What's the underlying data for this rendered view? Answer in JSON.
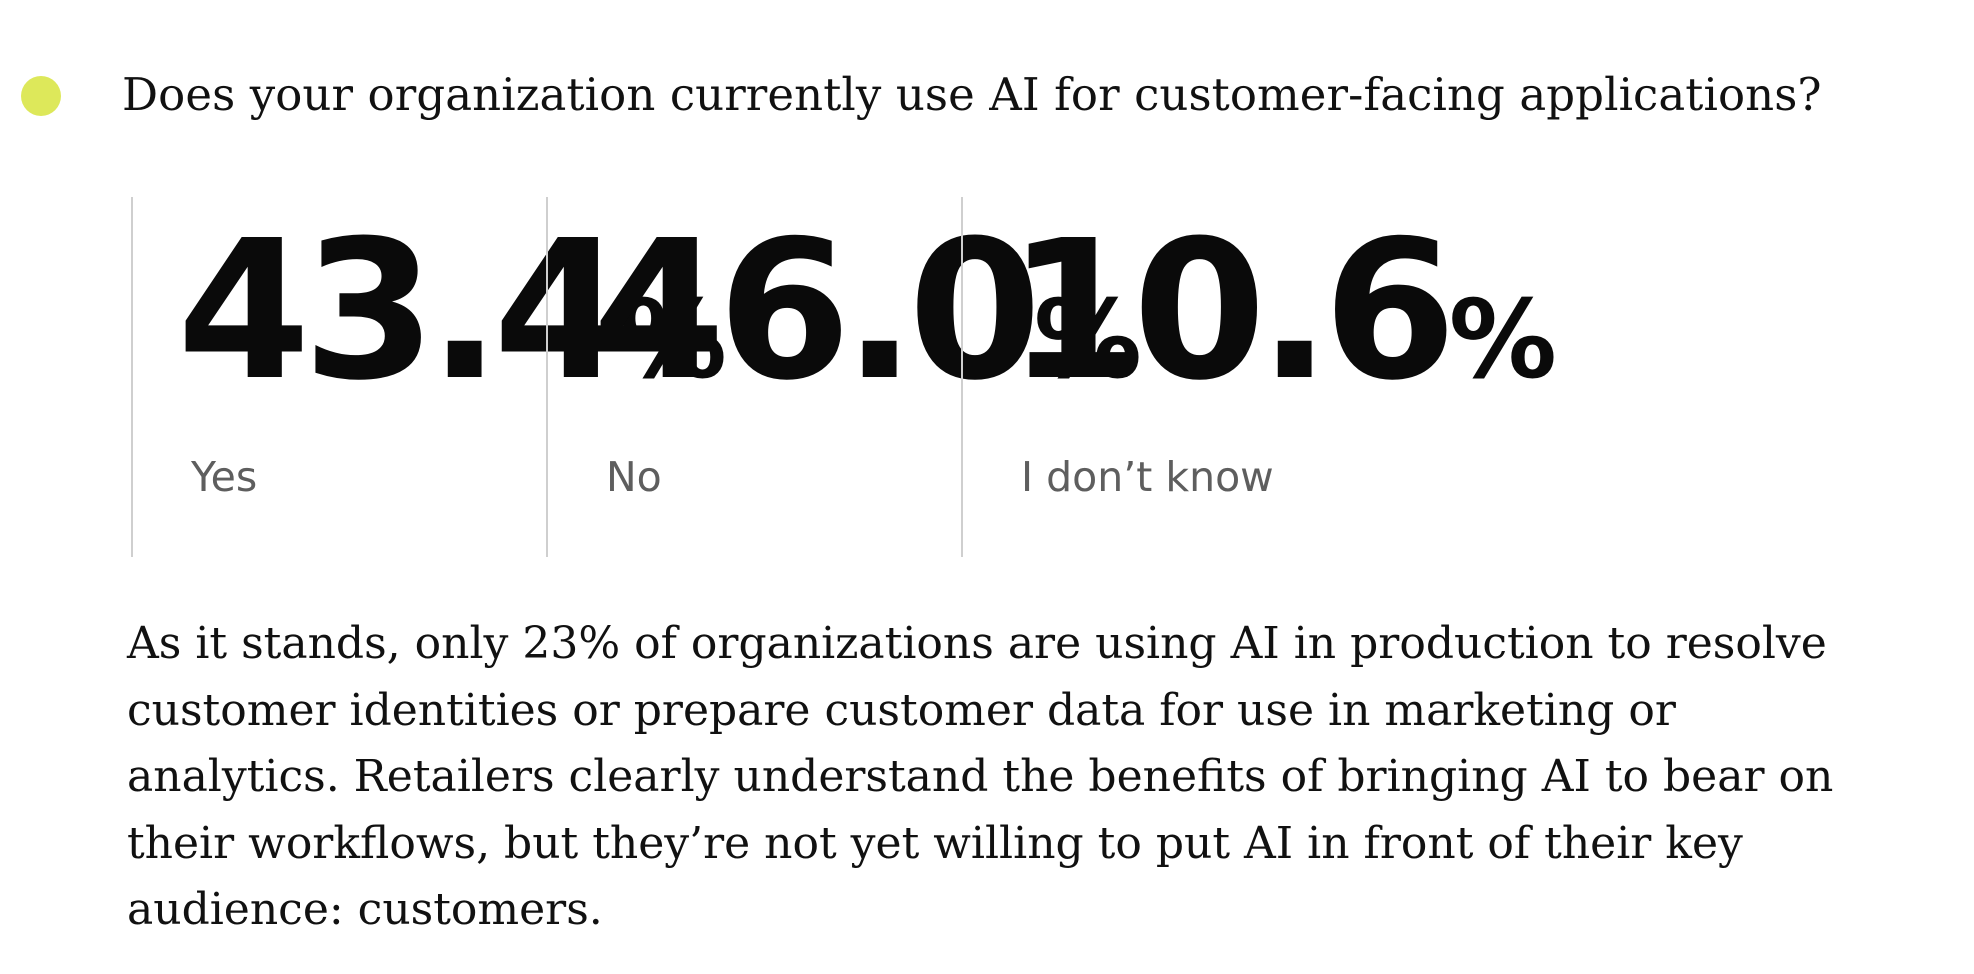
{
  "accent_color": "#dde85a",
  "question": "Does your organization currently use AI for customer-facing applications?",
  "stats": [
    {
      "value": "43.4",
      "unit": "%",
      "label": "Yes"
    },
    {
      "value": "46.0",
      "unit": "%",
      "label": "No"
    },
    {
      "value": "10.6",
      "unit": "%",
      "label": "I don’t know"
    }
  ],
  "body": {
    "lines": [
      "As it stands, only 23% of organizations are using AI in production to resolve",
      "customer identities or prepare customer data for use in marketing or",
      "analytics. Retailers clearly understand the benefits of bringing AI to bear on",
      "their workflows, but they’re not yet willing to put AI in front of their key",
      "audience: customers."
    ]
  }
}
